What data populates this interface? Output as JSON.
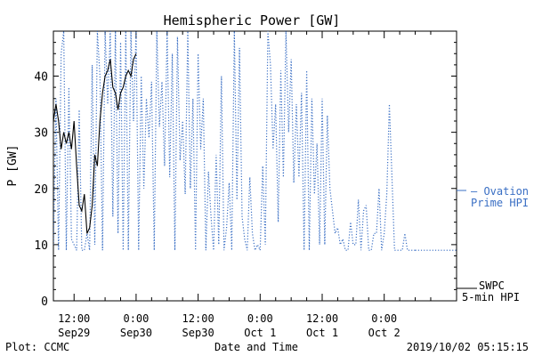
{
  "chart_data": {
    "type": "line",
    "title": "Hemispheric Power [GW]",
    "xlabel": "Date and Time",
    "ylabel": "P [GW]",
    "ylim": [
      0,
      48
    ],
    "xlim": [
      -16,
      62
    ],
    "x_unit": "hours from 2019-09-30 00:00 UTC",
    "yticks": [
      0,
      10,
      20,
      30,
      40
    ],
    "xticks": [
      {
        "x": -12,
        "time": "12:00",
        "date": "Sep29"
      },
      {
        "x": 0,
        "time": "0:00",
        "date": "Sep30"
      },
      {
        "x": 12,
        "time": "12:00",
        "date": "Sep30"
      },
      {
        "x": 24,
        "time": "0:00",
        "date": "Oct 1"
      },
      {
        "x": 36,
        "time": "12:00",
        "date": "Oct 1"
      },
      {
        "x": 48,
        "time": "0:00",
        "date": "Oct 2"
      }
    ],
    "grid": false,
    "colors": {
      "ovation": "#3a6fc4",
      "swpc": "#000000"
    },
    "series": [
      {
        "name": "Ovation Prime HPI",
        "legend_lines": [
          "— Ovation",
          "Prime HPI"
        ],
        "style": "dotted",
        "color": "#3a6fc4",
        "x": [
          -16,
          -15.5,
          -15,
          -14.5,
          -14,
          -13.5,
          -13,
          -12.5,
          -12,
          -11.5,
          -11,
          -10.5,
          -10,
          -9.5,
          -9,
          -8.5,
          -8,
          -7.5,
          -7,
          -6.5,
          -6,
          -5.5,
          -5,
          -4.5,
          -4,
          -3.5,
          -3,
          -2.5,
          -2,
          -1.5,
          -1,
          -0.5,
          0,
          0.5,
          1,
          1.5,
          2,
          2.5,
          3,
          3.5,
          4,
          4.5,
          5,
          5.5,
          6,
          6.5,
          7,
          7.5,
          8,
          8.5,
          9,
          9.5,
          10,
          10.5,
          11,
          11.5,
          12,
          12.5,
          13,
          13.5,
          14,
          14.5,
          15,
          15.5,
          16,
          16.5,
          17,
          17.5,
          18,
          18.5,
          19,
          19.5,
          20,
          20.5,
          21,
          21.5,
          22,
          22.5,
          23,
          23.5,
          24,
          24.5,
          25,
          25.5,
          26,
          26.5,
          27,
          27.5,
          28,
          28.5,
          29,
          29.5,
          30,
          30.5,
          31,
          31.5,
          32,
          32.5,
          33,
          33.5,
          34,
          34.5,
          35,
          35.5,
          36,
          36.5,
          37,
          37.5,
          38,
          38.5,
          39,
          39.5,
          40,
          40.5,
          41,
          41.5,
          42,
          42.5,
          43,
          43.5,
          44,
          44.5,
          45,
          45.5,
          46,
          46.5,
          47,
          47.5,
          48,
          48.5,
          49,
          49.5,
          50,
          50.5,
          51,
          51.5,
          52,
          52.5,
          53,
          53.5,
          54
        ],
        "values": [
          10,
          36,
          9,
          44,
          48,
          9,
          38,
          11,
          10,
          9,
          34,
          9,
          9,
          12,
          9,
          42,
          10,
          48,
          40,
          9,
          48,
          35,
          48,
          15,
          48,
          12,
          46,
          9,
          48,
          9,
          48,
          32,
          48,
          9,
          40,
          20,
          36,
          29,
          39,
          9,
          48,
          31,
          39,
          24,
          48,
          22,
          44,
          9,
          47,
          25,
          32,
          19,
          48,
          20,
          36,
          9,
          44,
          27,
          36,
          9,
          23,
          15,
          9,
          26,
          10,
          40,
          9,
          13,
          21,
          9,
          48,
          18,
          45,
          15,
          11,
          9,
          22,
          12,
          9,
          10,
          9,
          24,
          10,
          48,
          42,
          27,
          35,
          14,
          41,
          22,
          48,
          30,
          43,
          21,
          35,
          22,
          37,
          9,
          41,
          9,
          36,
          19,
          28,
          10,
          36,
          10,
          33,
          20,
          16,
          12,
          13,
          10,
          11,
          9,
          9,
          14,
          10,
          10,
          18,
          9,
          16,
          17,
          9,
          9,
          12,
          12,
          20,
          9,
          12,
          19,
          35,
          22,
          9,
          9,
          9,
          9,
          12,
          9,
          9,
          9,
          9
        ]
      },
      {
        "name": "SWPC 5-min HPI",
        "legend_lines": [
          "SWPC",
          "5-min HPI"
        ],
        "style": "solid",
        "color": "#000000",
        "x": [
          -16,
          -15.5,
          -15,
          -14.5,
          -14,
          -13.5,
          -13,
          -12.5,
          -12,
          -11.5,
          -11,
          -10.5,
          -10,
          -9.5,
          -9,
          -8.5,
          -8,
          -7.5,
          -7,
          -6.5,
          -6,
          -5.5,
          -5,
          -4.5,
          -4,
          -3.5,
          -3,
          -2.5,
          -2,
          -1.5,
          -1,
          -0.5,
          0
        ],
        "values": [
          32,
          35,
          32,
          27,
          30,
          28,
          30,
          27,
          32,
          24,
          17,
          16,
          19,
          12,
          13,
          17,
          26,
          24,
          32,
          37,
          40,
          41,
          43,
          38,
          37,
          34,
          37,
          38,
          40,
          41,
          40,
          43,
          44
        ]
      }
    ]
  },
  "footer": {
    "plot_credit": "Plot: CCMC",
    "xlabel": "Date and Time",
    "timestamp": "2019/10/02 05:15:15"
  }
}
